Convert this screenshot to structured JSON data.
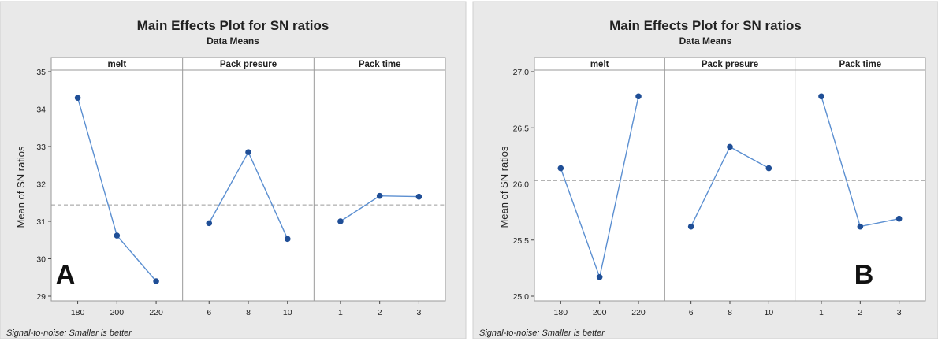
{
  "chart_data": [
    {
      "type": "line",
      "title": "Main Effects Plot for SN ratios",
      "subtitle": "Data Means",
      "ylabel": "Mean of SN ratios",
      "ylim": [
        29,
        35
      ],
      "yticks": [
        29,
        30,
        31,
        32,
        33,
        34,
        35
      ],
      "mean_line": 31.44,
      "panel_letter": "A",
      "footnote": "Signal-to-noise: Smaller is better",
      "panels": [
        {
          "name": "melt",
          "categories": [
            "180",
            "200",
            "220"
          ],
          "values": [
            34.3,
            30.62,
            29.4
          ]
        },
        {
          "name": "Pack presure",
          "categories": [
            "6",
            "8",
            "10"
          ],
          "values": [
            30.95,
            32.85,
            30.53
          ]
        },
        {
          "name": "Pack time",
          "categories": [
            "1",
            "2",
            "3"
          ],
          "values": [
            31.0,
            31.68,
            31.66
          ]
        }
      ]
    },
    {
      "type": "line",
      "title": "Main Effects Plot for SN ratios",
      "subtitle": "Data Means",
      "ylabel": "Mean of SN ratios",
      "ylim": [
        25.0,
        27.0
      ],
      "yticks": [
        "25.0",
        "25.5",
        "26.0",
        "26.5",
        "27.0"
      ],
      "mean_line": 26.03,
      "panel_letter": "B",
      "footnote": "Signal-to-noise: Smaller is better",
      "panels": [
        {
          "name": "melt",
          "categories": [
            "180",
            "200",
            "220"
          ],
          "values": [
            26.14,
            25.17,
            26.78
          ]
        },
        {
          "name": "Pack presure",
          "categories": [
            "6",
            "8",
            "10"
          ],
          "values": [
            25.62,
            26.33,
            26.14
          ]
        },
        {
          "name": "Pack time",
          "categories": [
            "1",
            "2",
            "3"
          ],
          "values": [
            26.78,
            25.62,
            25.69
          ]
        }
      ]
    }
  ],
  "colors": {
    "background": "#e9e9e9",
    "plot_area": "#ffffff",
    "line": "#5b8fd1",
    "marker": "#1f4e96",
    "mean_line": "#9a9a9a",
    "panel_border": "#9a9a9a"
  }
}
